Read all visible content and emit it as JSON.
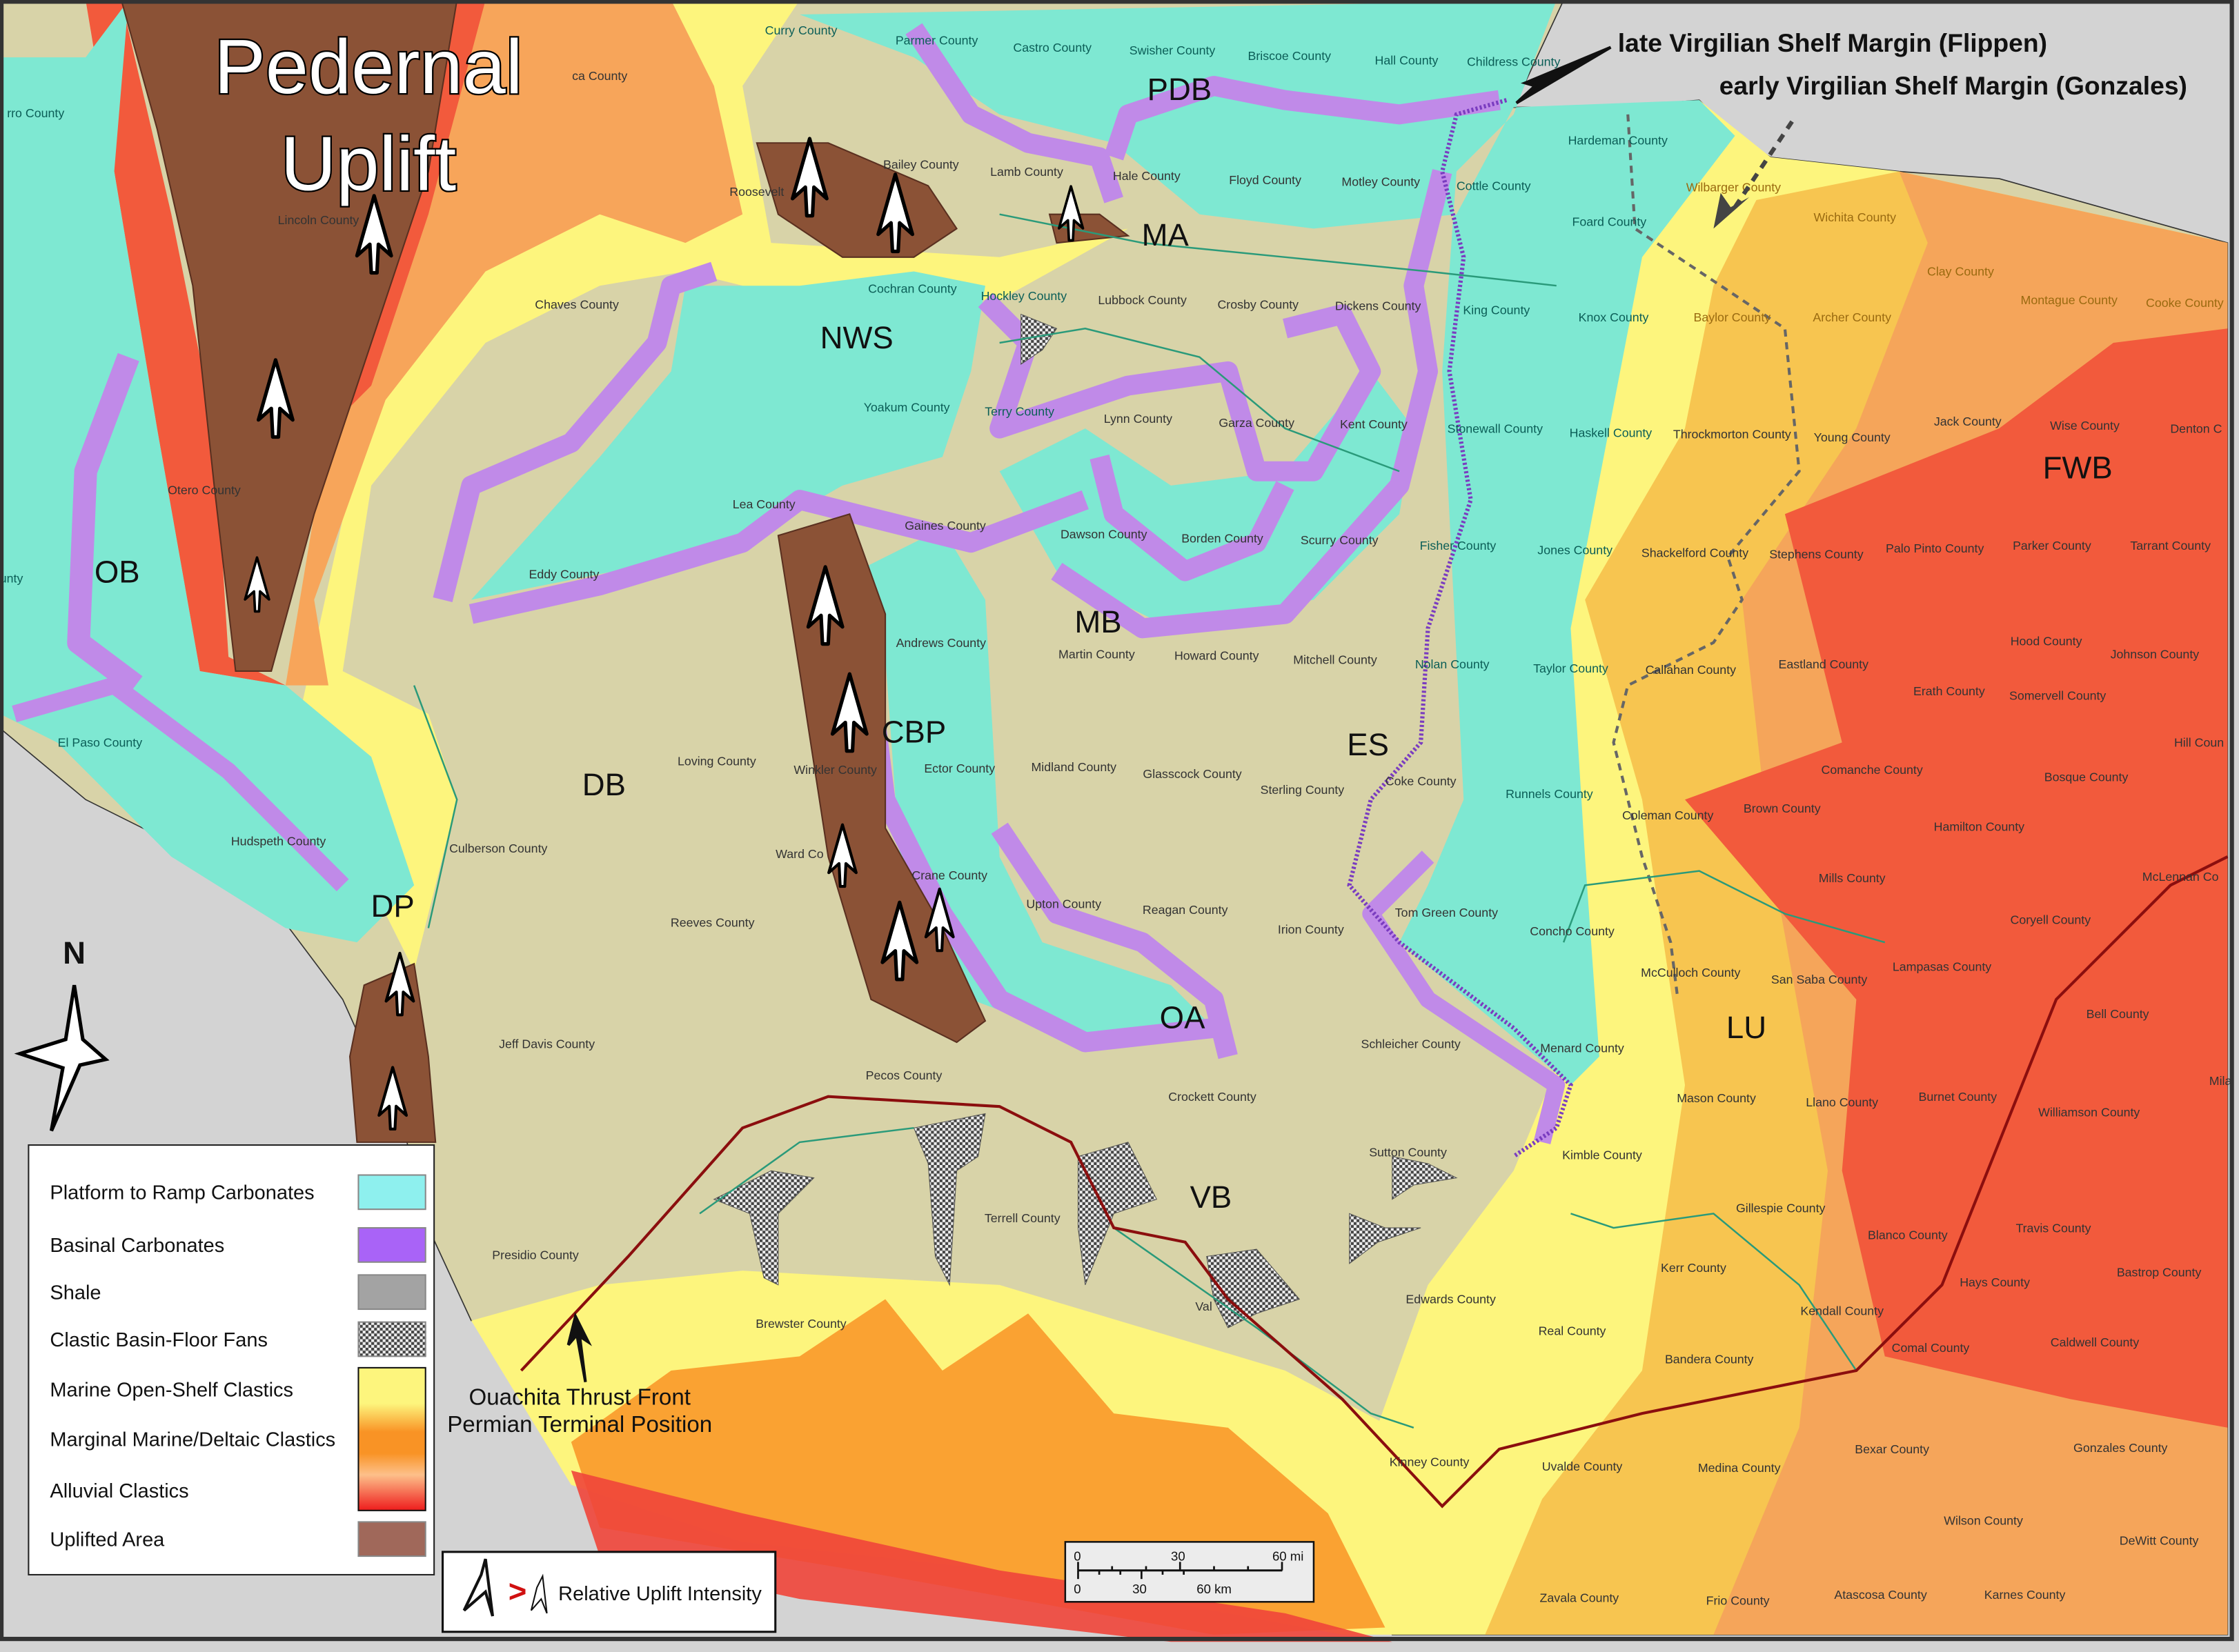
{
  "title": {
    "line1": "Pedernal",
    "line2": "Uplift"
  },
  "colors": {
    "platform_to_ramp_carbonates": "#8ef0ee",
    "basinal_carbonates": "#a963f7",
    "shale": "#a3a3a3",
    "marine_open_shelf_clastics": "#fdf57d",
    "marginal_marine_deltaic_clastics": "#f99325",
    "alluvial_clastics": "#ee1c1c",
    "uplifted_area": "#a0685a",
    "land": "#d8d3a8",
    "background": "#d3d3d3",
    "thrust_front": "#8b0e0e"
  },
  "callouts": {
    "late_margin": "late Virgilian Shelf Margin (Flippen)",
    "early_margin": "early Virgilian Shelf Margin (Gonzales)",
    "thrust_line1": "Ouachita Thrust Front",
    "thrust_line2": "Permian Terminal Position"
  },
  "regions": [
    "OB",
    "DB",
    "DP",
    "CBP",
    "NWS",
    "PDB",
    "MA",
    "MB",
    "ES",
    "OA",
    "VB",
    "LU",
    "FWB"
  ],
  "counties": [
    "rro County",
    "ca County",
    "Curry County",
    "Parmer County",
    "Castro County",
    "Swisher County",
    "Briscoe County",
    "Hall County",
    "Childress County",
    "Hardeman County",
    "Wilbarger County",
    "Wichita County",
    "Clay County",
    "Montague County",
    "Cooke County",
    "Lincoln County",
    "Roosevelt",
    "Bailey County",
    "Lamb County",
    "Hale County",
    "Floyd County",
    "Motley County",
    "Cottle County",
    "Foard County",
    "Chaves County",
    "Cochran County",
    "Hockley County",
    "Lubbock County",
    "Crosby County",
    "Dickens County",
    "King County",
    "Knox County",
    "Baylor County",
    "Archer County",
    "Yoakum County",
    "Terry County",
    "Lynn County",
    "Garza County",
    "Kent County",
    "Stonewall County",
    "Haskell County",
    "Throckmorton County",
    "Young County",
    "Jack County",
    "Wise County",
    "Denton C",
    "Otero County",
    "Lea County",
    "Gaines County",
    "Dawson County",
    "Borden County",
    "Scurry County",
    "Fisher County",
    "Jones County",
    "Shackelford County",
    "Stephens County",
    "Palo Pinto County",
    "Parker County",
    "Tarrant County",
    "Eddy County",
    "unty",
    "Andrews County",
    "Martin County",
    "Howard County",
    "Mitchell County",
    "Nolan County",
    "Taylor County",
    "Callahan County",
    "Eastland County",
    "Hood County",
    "Johnson County",
    "Erath County",
    "Somervell County",
    "Hill Coun",
    "El Paso County",
    "Loving County",
    "Winkler County",
    "Ector County",
    "Midland County",
    "Glasscock County",
    "Sterling County",
    "Coke County",
    "Runnels County",
    "Coleman County",
    "Brown County",
    "Comanche County",
    "Bosque County",
    "Hamilton County",
    "Hudspeth County",
    "Culberson County",
    "Ward Co",
    "Crane County",
    "Upton County",
    "Reagan County",
    "Irion County",
    "Tom Green County",
    "Concho County",
    "Mills County",
    "McLennan Co",
    "Coryell County",
    "Reeves County",
    "McCulloch County",
    "San Saba County",
    "Lampasas County",
    "Bell County",
    "Jeff Davis County",
    "Schleicher County",
    "Menard County",
    "Pecos County",
    "Crockett County",
    "Mason County",
    "Llano County",
    "Burnet County",
    "Williamson County",
    "Sutton County",
    "Kimble County",
    "Gillespie County",
    "Terrell County",
    "Travis County",
    "Blanco County",
    "Presidio County",
    "Kerr County",
    "Hays County",
    "Bastrop County",
    "Edwards County",
    "Val",
    "Kendall County",
    "Brewster County",
    "Real County",
    "Comal County",
    "Caldwell County",
    "Bandera County",
    "Kinney County",
    "Uvalde County",
    "Medina County",
    "Bexar County",
    "Gonzales County",
    "Wilson County",
    "DeWitt County",
    "Zavala County",
    "Frio County",
    "Atascosa County",
    "Karnes County",
    "Mila"
  ],
  "legend": {
    "items": [
      {
        "label": "Platform to Ramp Carbonates",
        "swatch": "platform_to_ramp_carbonates"
      },
      {
        "label": "Basinal Carbonates",
        "swatch": "basinal_carbonates"
      },
      {
        "label": "Shale",
        "swatch": "shale"
      },
      {
        "label": "Clastic Basin-Floor Fans",
        "swatch": "hatched"
      },
      {
        "label": "Marine Open-Shelf Clastics",
        "swatch": "gradient"
      },
      {
        "label": "Marginal Marine/Deltaic Clastics",
        "swatch": "gradient"
      },
      {
        "label": "Alluvial Clastics",
        "swatch": "gradient"
      },
      {
        "label": "Uplifted Area",
        "swatch": "uplifted_area"
      }
    ]
  },
  "uplift_key": {
    "symbol": ">",
    "label": "Relative Uplift Intensity"
  },
  "north_arrow": {
    "label": "N"
  },
  "scale_bar": {
    "mi_ticks": [
      "0",
      "30",
      "60 mi"
    ],
    "km_ticks": [
      "0",
      "30",
      "60 km"
    ]
  }
}
